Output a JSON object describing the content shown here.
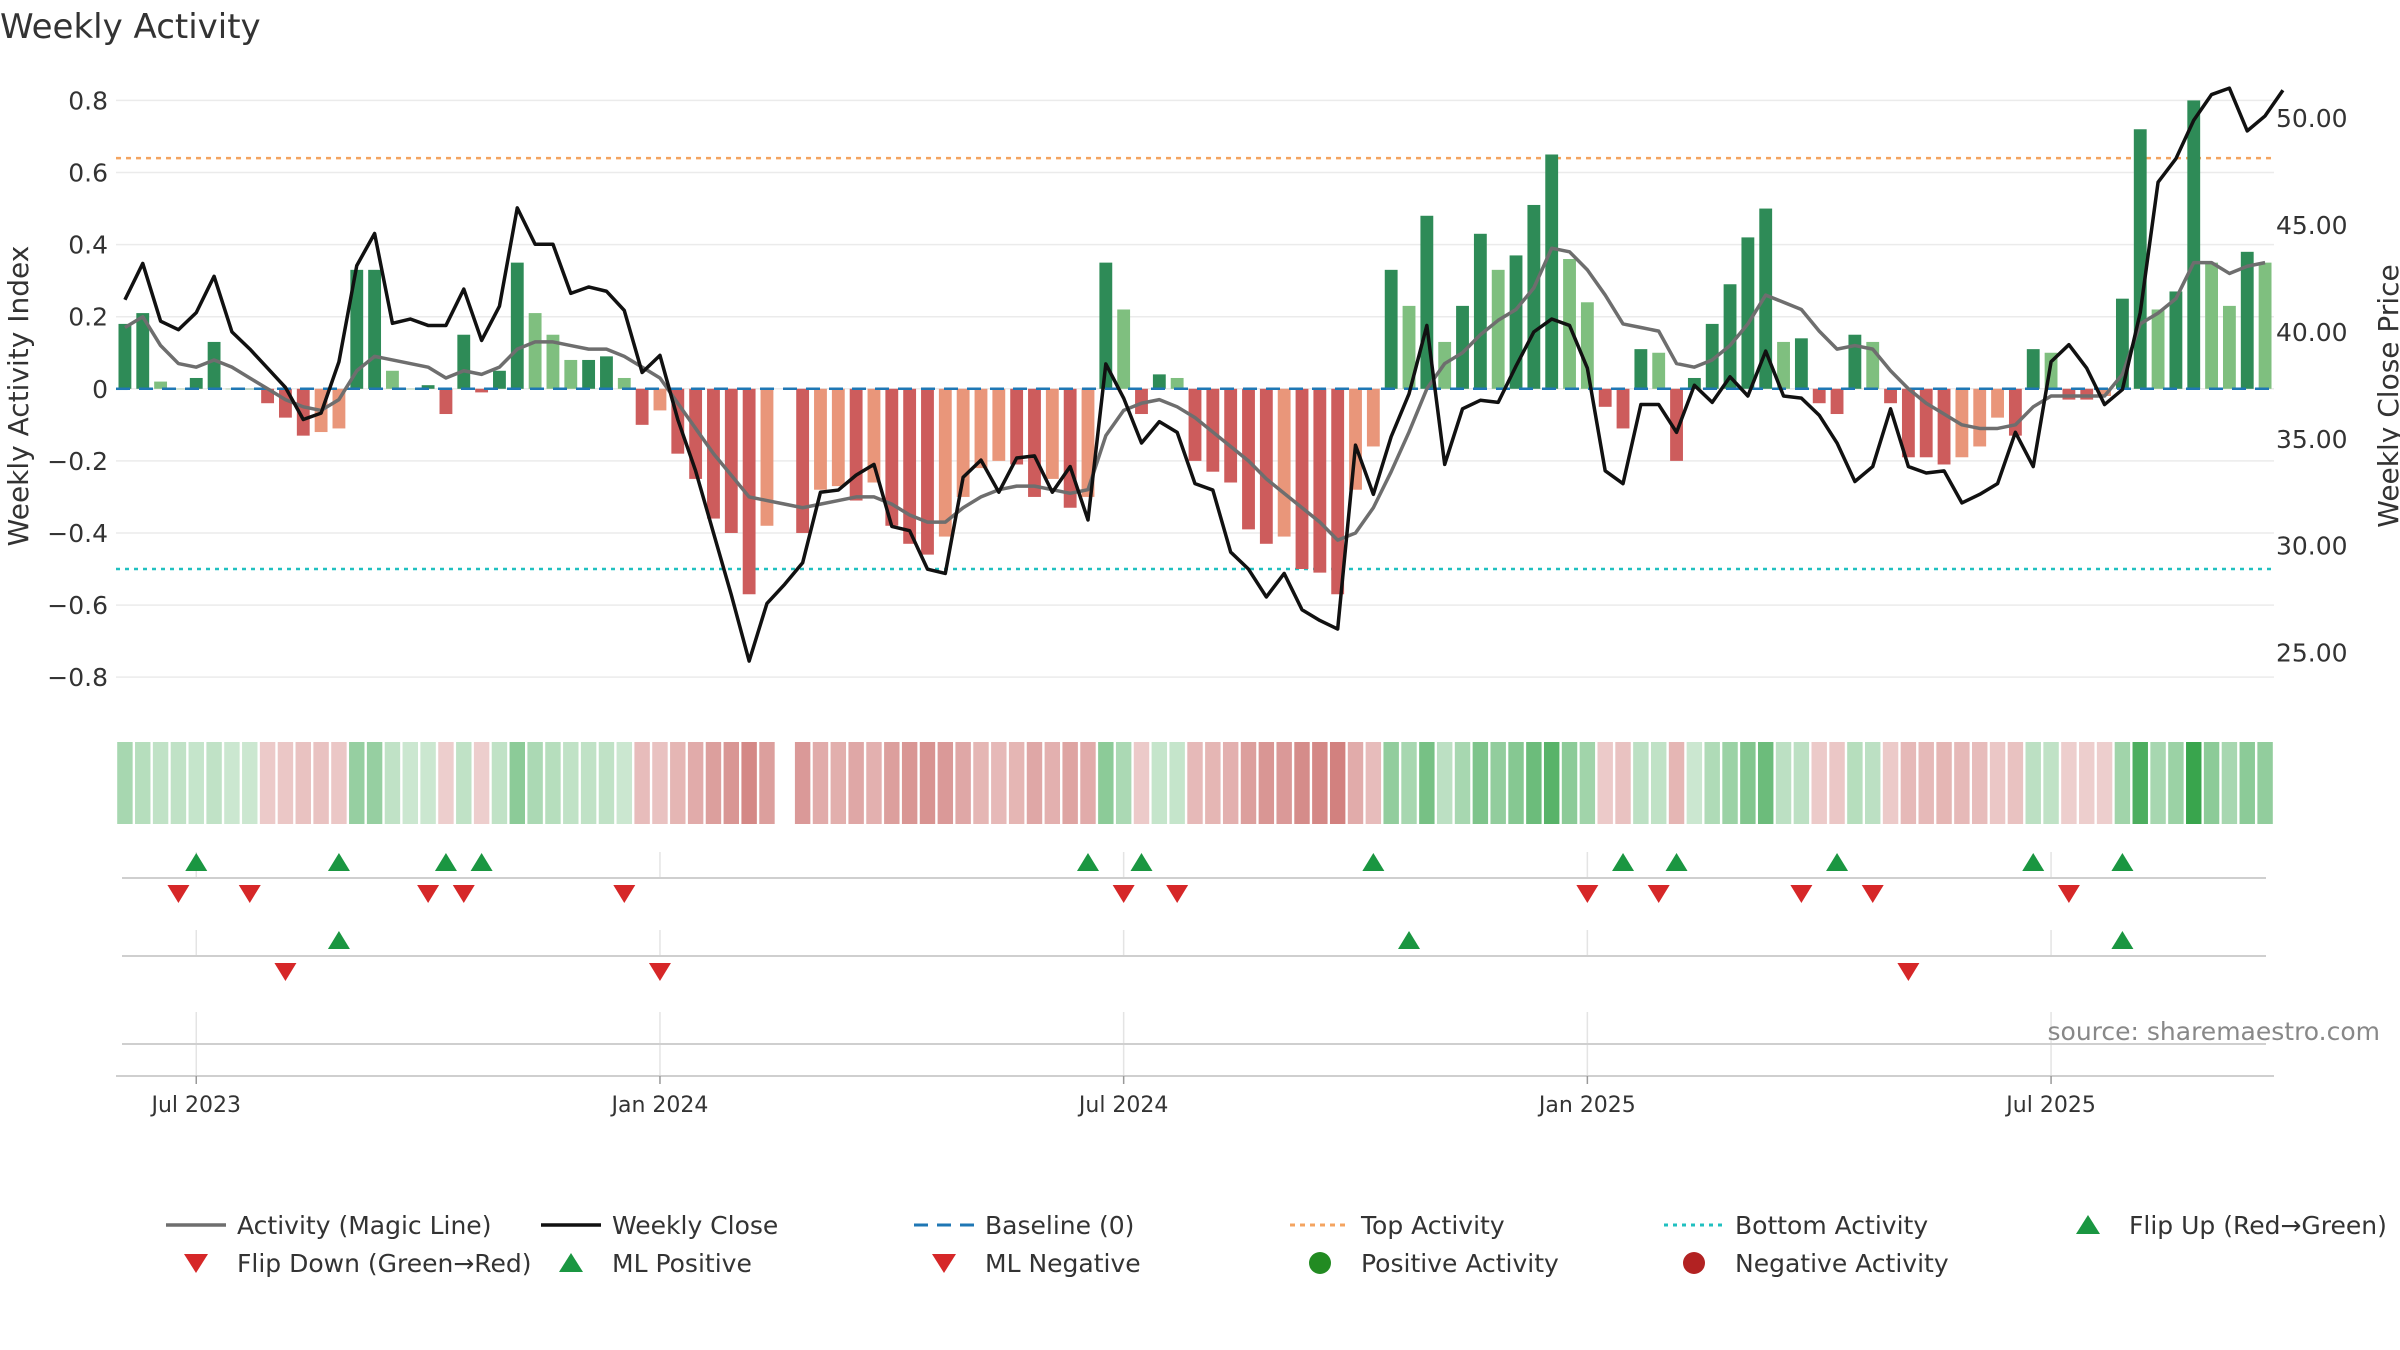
{
  "chart_data": {
    "type": "bar",
    "title": "Weekly Activity",
    "ylabel_left": "Weekly Activity Index",
    "ylabel_right": "Weekly Close Price",
    "ylim_left": [
      -0.88,
      0.84
    ],
    "ylim_right": [
      22.5,
      51.5
    ],
    "yticks_left": [
      0.8,
      0.6,
      0.4,
      0.2,
      0,
      -0.2,
      -0.4,
      -0.6,
      -0.8
    ],
    "yticks_left_labels": [
      "0.8",
      "0.6",
      "0.4",
      "0.2",
      "0",
      "−0.2",
      "−0.4",
      "−0.6",
      "−0.8"
    ],
    "yticks_right": [
      50,
      45,
      40,
      35,
      30,
      25
    ],
    "yticks_right_labels": [
      "50.00",
      "45.00",
      "40.00",
      "35.00",
      "30.00",
      "25.00"
    ],
    "x_tick_labels": [
      "Jul 2023",
      "Jan 2024",
      "Jul 2024",
      "Jan 2025",
      "Jul 2025"
    ],
    "x_tick_weeks": [
      4,
      30,
      56,
      82,
      108
    ],
    "top_activity": 0.64,
    "bottom_activity": -0.5,
    "baseline": 0,
    "source": "source: sharemaestro.com",
    "colors": {
      "pos_strong": "#2e8b57",
      "pos_light": "#7fbf7f",
      "neg_strong": "#cd5c5c",
      "neg_light": "#e9967a",
      "magic_line": "#6e6e6e",
      "close_line": "#111111",
      "baseline": "#1f77b4",
      "top_line": "#f4a460",
      "bottom_line": "#20c0c0",
      "marker_up": "#1a9641",
      "marker_down": "#d62728",
      "positive_dot": "#228b22",
      "negative_dot": "#b22222"
    },
    "activity": [
      0.18,
      0.21,
      0.02,
      0,
      0.03,
      0.13,
      0,
      0,
      -0.04,
      -0.08,
      -0.13,
      -0.12,
      -0.11,
      0.33,
      0.33,
      0.05,
      0,
      0.01,
      -0.07,
      0.15,
      -0.01,
      0.05,
      0.35,
      0.21,
      0.15,
      0.08,
      0.08,
      0.09,
      0.03,
      -0.1,
      -0.06,
      -0.18,
      -0.25,
      -0.36,
      -0.4,
      -0.57,
      -0.38,
      null,
      -0.4,
      -0.28,
      -0.27,
      -0.31,
      -0.26,
      -0.38,
      -0.43,
      -0.46,
      -0.41,
      -0.3,
      -0.22,
      -0.2,
      -0.21,
      -0.3,
      -0.25,
      -0.33,
      -0.3,
      0.35,
      0.22,
      -0.07,
      0.04,
      0.03,
      -0.2,
      -0.23,
      -0.26,
      -0.39,
      -0.43,
      -0.41,
      -0.5,
      -0.51,
      -0.57,
      -0.28,
      -0.16,
      0.33,
      0.23,
      0.48,
      0.13,
      0.23,
      0.43,
      0.33,
      0.37,
      0.51,
      0.65,
      0.36,
      0.24,
      -0.05,
      -0.11,
      0.11,
      0.1,
      -0.2,
      0.03,
      0.18,
      0.29,
      0.42,
      0.5,
      0.13,
      0.14,
      -0.04,
      -0.07,
      0.15,
      0.13,
      -0.04,
      -0.19,
      -0.19,
      -0.21,
      -0.19,
      -0.16,
      -0.08,
      -0.13,
      0.11,
      0.1,
      -0.03,
      -0.03,
      -0.02,
      0.25,
      0.72,
      0.22,
      0.27,
      0.8,
      0.35,
      0.23,
      0.38,
      0.35
    ],
    "magic_line": [
      0.17,
      0.2,
      0.12,
      0.07,
      0.06,
      0.08,
      0.06,
      0.03,
      0,
      -0.03,
      -0.05,
      -0.06,
      -0.03,
      0.05,
      0.09,
      0.08,
      0.07,
      0.06,
      0.03,
      0.05,
      0.04,
      0.06,
      0.11,
      0.13,
      0.13,
      0.12,
      0.11,
      0.11,
      0.09,
      0.06,
      0.03,
      -0.04,
      -0.11,
      -0.18,
      -0.24,
      -0.3,
      -0.31,
      -0.32,
      -0.33,
      -0.32,
      -0.31,
      -0.3,
      -0.3,
      -0.32,
      -0.35,
      -0.37,
      -0.37,
      -0.33,
      -0.3,
      -0.28,
      -0.27,
      -0.27,
      -0.28,
      -0.29,
      -0.28,
      -0.13,
      -0.06,
      -0.04,
      -0.03,
      -0.05,
      -0.08,
      -0.12,
      -0.16,
      -0.2,
      -0.25,
      -0.29,
      -0.33,
      -0.37,
      -0.42,
      -0.4,
      -0.33,
      -0.23,
      -0.12,
      0,
      0.07,
      0.1,
      0.15,
      0.19,
      0.22,
      0.28,
      0.39,
      0.38,
      0.33,
      0.26,
      0.18,
      0.17,
      0.16,
      0.07,
      0.06,
      0.08,
      0.12,
      0.18,
      0.26,
      0.24,
      0.22,
      0.16,
      0.11,
      0.12,
      0.11,
      0.05,
      0,
      -0.04,
      -0.07,
      -0.1,
      -0.11,
      -0.11,
      -0.1,
      -0.05,
      -0.02,
      -0.02,
      -0.02,
      -0.02,
      0.04,
      0.18,
      0.21,
      0.25,
      0.35,
      0.35,
      0.32,
      0.34,
      0.35
    ],
    "weekly_close": [
      41.5,
      43.2,
      40.5,
      40.1,
      40.9,
      42.6,
      40.0,
      39.2,
      38.3,
      37.4,
      35.9,
      36.2,
      38.6,
      43.1,
      44.6,
      40.4,
      40.6,
      40.3,
      40.3,
      42.0,
      39.6,
      41.2,
      45.8,
      44.1,
      44.1,
      41.8,
      42.1,
      41.9,
      41.0,
      38.1,
      38.9,
      35.9,
      33.5,
      30.6,
      27.7,
      24.6,
      27.3,
      28.2,
      29.2,
      32.5,
      32.6,
      33.3,
      33.8,
      30.9,
      30.7,
      28.9,
      28.7,
      33.2,
      34.0,
      32.5,
      34.1,
      34.2,
      32.5,
      33.7,
      31.2,
      38.5,
      36.9,
      34.8,
      35.8,
      35.3,
      32.9,
      32.6,
      29.7,
      28.9,
      27.6,
      28.7,
      27.0,
      26.5,
      26.1,
      34.7,
      32.4,
      35.1,
      37.1,
      40.3,
      33.8,
      36.4,
      36.8,
      36.7,
      38.4,
      40.0,
      40.6,
      40.3,
      38.3,
      33.5,
      32.9,
      36.6,
      36.6,
      35.3,
      37.5,
      36.7,
      37.9,
      37.0,
      39.1,
      37.0,
      36.9,
      36.1,
      34.8,
      33.0,
      33.7,
      36.4,
      33.7,
      33.4,
      33.5,
      32.0,
      32.4,
      32.9,
      35.3,
      33.7,
      38.6,
      39.4,
      38.3,
      36.6,
      37.3,
      40.9,
      47.0,
      48.1,
      49.9,
      51.1,
      51.4,
      49.4,
      50.1,
      51.3
    ],
    "strip_alpha": [
      0.42,
      0.35,
      0.3,
      0.3,
      0.28,
      0.3,
      0.25,
      0.25,
      0.3,
      0.32,
      0.35,
      0.35,
      0.32,
      0.5,
      0.5,
      0.3,
      0.25,
      0.25,
      0.28,
      0.3,
      0.28,
      0.3,
      0.55,
      0.4,
      0.35,
      0.3,
      0.3,
      0.3,
      0.25,
      0.38,
      0.35,
      0.42,
      0.48,
      0.55,
      0.6,
      0.68,
      0.55,
      0,
      0.58,
      0.48,
      0.46,
      0.5,
      0.45,
      0.55,
      0.6,
      0.62,
      0.58,
      0.5,
      0.42,
      0.4,
      0.42,
      0.5,
      0.45,
      0.52,
      0.48,
      0.55,
      0.4,
      0.3,
      0.28,
      0.28,
      0.4,
      0.42,
      0.45,
      0.55,
      0.6,
      0.58,
      0.66,
      0.68,
      0.72,
      0.48,
      0.38,
      0.52,
      0.42,
      0.65,
      0.32,
      0.42,
      0.62,
      0.52,
      0.58,
      0.7,
      0.8,
      0.55,
      0.45,
      0.3,
      0.35,
      0.32,
      0.3,
      0.42,
      0.25,
      0.38,
      0.48,
      0.6,
      0.7,
      0.32,
      0.32,
      0.3,
      0.32,
      0.35,
      0.32,
      0.3,
      0.4,
      0.4,
      0.42,
      0.4,
      0.38,
      0.32,
      0.35,
      0.32,
      0.3,
      0.28,
      0.28,
      0.28,
      0.45,
      0.85,
      0.42,
      0.48,
      0.95,
      0.55,
      0.42,
      0.55,
      0.52
    ],
    "flip_up_weeks": [
      4,
      12,
      18,
      20,
      54,
      57,
      70,
      84,
      87,
      96,
      107,
      112
    ],
    "flip_down_weeks": [
      3,
      7,
      17,
      19,
      28,
      56,
      59,
      82,
      86,
      94,
      98,
      109
    ],
    "ml_positive_weeks": [
      12,
      72,
      112
    ],
    "ml_negative_weeks": [
      9,
      30,
      100
    ],
    "legend": [
      "Activity (Magic Line)",
      "Weekly Close",
      "Baseline (0)",
      "Top Activity",
      "Bottom Activity",
      "Flip Up (Red→Green)",
      "Flip Down (Green→Red)",
      "ML Positive",
      "ML Negative",
      "Positive Activity",
      "Negative Activity"
    ]
  }
}
